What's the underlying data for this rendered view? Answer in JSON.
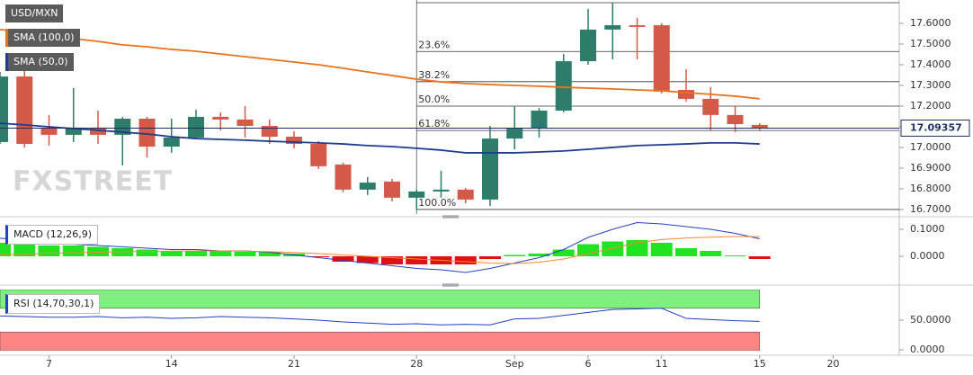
{
  "chart_data": [
    {
      "type": "candlestick",
      "title": "USD/MXN",
      "watermark": "FXSTREET",
      "categories": [
        null,
        null,
        "7",
        null,
        null,
        null,
        null,
        "14",
        null,
        null,
        null,
        null,
        "21",
        null,
        null,
        null,
        null,
        "28",
        null,
        null,
        null,
        "Sep",
        null,
        null,
        "6",
        null,
        null,
        "11",
        null,
        null,
        null,
        "15",
        null,
        null,
        "20"
      ],
      "open": [
        17.026,
        17.343,
        17.091,
        17.061,
        17.096,
        17.061,
        17.139,
        17.004,
        17.048,
        17.148,
        17.135,
        17.104,
        17.052,
        17.017,
        16.917,
        16.796,
        16.835,
        16.757,
        16.787,
        16.796,
        16.748,
        17.043,
        17.091,
        17.178,
        17.417,
        17.57,
        17.591,
        17.591,
        17.278,
        17.235,
        17.157,
        17.109,
        null,
        null,
        null
      ],
      "high": [
        17.365,
        17.387,
        17.157,
        17.287,
        17.178,
        17.148,
        17.148,
        17.139,
        17.183,
        17.17,
        17.2,
        17.135,
        17.078,
        17.03,
        16.926,
        16.857,
        16.848,
        16.796,
        16.887,
        16.804,
        17.104,
        17.2,
        17.191,
        17.452,
        17.67,
        17.7,
        17.626,
        17.6,
        17.378,
        17.291,
        17.2,
        17.117,
        null,
        null,
        null
      ],
      "low": [
        17.017,
        17.0,
        17.009,
        17.026,
        17.017,
        16.913,
        16.952,
        16.974,
        17.039,
        17.083,
        17.048,
        17.017,
        16.996,
        16.896,
        16.783,
        16.77,
        16.739,
        16.7,
        16.757,
        16.73,
        16.717,
        16.991,
        17.048,
        17.17,
        17.4,
        17.426,
        17.426,
        17.261,
        17.222,
        17.083,
        17.074,
        17.083,
        null,
        null,
        null
      ],
      "close": [
        17.343,
        17.017,
        17.061,
        17.096,
        17.061,
        17.139,
        17.004,
        17.048,
        17.148,
        17.135,
        17.104,
        17.052,
        17.017,
        16.909,
        16.796,
        16.83,
        16.757,
        16.787,
        16.796,
        16.748,
        17.043,
        17.091,
        17.178,
        17.417,
        17.57,
        17.591,
        17.583,
        17.27,
        17.235,
        17.157,
        17.113,
        17.09357,
        null,
        null,
        null
      ],
      "up_color": "#2e7d6b",
      "down_color": "#d35a48",
      "series": [
        {
          "name": "SMA (100,0)",
          "color": "#e8731c",
          "values": [
            17.57,
            17.557,
            17.539,
            17.526,
            17.513,
            17.496,
            17.487,
            17.474,
            17.465,
            17.452,
            17.439,
            17.426,
            17.413,
            17.4,
            17.383,
            17.365,
            17.348,
            17.33,
            17.317,
            17.309,
            17.304,
            17.3,
            17.296,
            17.291,
            17.287,
            17.283,
            17.278,
            17.274,
            17.265,
            17.257,
            17.248,
            17.235,
            null,
            null,
            null
          ]
        },
        {
          "name": "SMA (50,0)",
          "color": "#1f3c8f",
          "values": [
            17.117,
            17.109,
            17.1,
            17.091,
            17.083,
            17.074,
            17.065,
            17.052,
            17.043,
            17.039,
            17.035,
            17.03,
            17.026,
            17.022,
            17.017,
            17.009,
            17.004,
            16.996,
            16.987,
            16.974,
            16.974,
            16.974,
            16.978,
            16.983,
            16.991,
            17.0,
            17.009,
            17.013,
            17.017,
            17.022,
            17.022,
            17.017,
            null,
            null,
            null
          ]
        }
      ],
      "fibonacci": [
        {
          "value": 17.7
        },
        {
          "value": 17.464,
          "label": "23.6%"
        },
        {
          "value": 17.318,
          "label": "38.2%"
        },
        {
          "value": 17.2,
          "label": "50.0%"
        },
        {
          "value": 17.082,
          "label": "61.8%"
        },
        {
          "value": 16.7,
          "label": "100.0%"
        }
      ],
      "ylim": [
        16.678,
        17.713
      ],
      "yticks": [
        {
          "value": 16.7,
          "label": "16.7000"
        },
        {
          "value": 16.8,
          "label": "16.8000"
        },
        {
          "value": 16.9,
          "label": "16.9000"
        },
        {
          "value": 17.0,
          "label": "17.0000"
        },
        {
          "value": 17.1,
          "label": "17.1000"
        },
        {
          "value": 17.2,
          "label": "17.2000"
        },
        {
          "value": 17.3,
          "label": "17.3000"
        },
        {
          "value": 17.4,
          "label": "17.4000"
        },
        {
          "value": 17.5,
          "label": "17.5000"
        },
        {
          "value": 17.6,
          "label": "17.6000"
        }
      ]
    },
    {
      "type": "macd",
      "title": "MACD (12,26,9)",
      "histogram": [
        0.05,
        0.045,
        0.04,
        0.04,
        0.035,
        0.03,
        0.025,
        0.02,
        0.02,
        0.02,
        0.017,
        0.015,
        0.01,
        -0.003,
        -0.02,
        -0.025,
        -0.03,
        -0.03,
        -0.03,
        -0.03,
        -0.01,
        0.005,
        0.01,
        0.025,
        0.045,
        0.055,
        0.06,
        0.05,
        0.03,
        0.02,
        0.003,
        -0.01,
        null,
        null,
        null
      ],
      "positive_color": "#22e322",
      "negative_color": "#e01010",
      "series": [
        {
          "color": "#2340c0",
          "values": [
            0.067,
            0.06,
            0.05,
            0.045,
            0.04,
            0.035,
            0.03,
            0.025,
            0.025,
            0.02,
            0.02,
            0.015,
            0.005,
            -0.005,
            -0.015,
            -0.025,
            -0.035,
            -0.045,
            -0.05,
            -0.06,
            -0.045,
            -0.025,
            -0.005,
            0.025,
            0.07,
            0.1,
            0.125,
            0.12,
            0.11,
            0.1,
            0.085,
            0.065,
            null,
            null,
            null
          ]
        },
        {
          "color": "#f08a2c",
          "values": [
            0.005,
            0.008,
            0.011,
            0.013,
            0.015,
            0.017,
            0.018,
            0.019,
            0.02,
            0.02,
            0.019,
            0.017,
            0.014,
            0.01,
            0.005,
            0,
            -0.005,
            -0.01,
            -0.015,
            -0.02,
            -0.025,
            -0.027,
            -0.022,
            -0.01,
            0.01,
            0.03,
            0.05,
            0.062,
            0.068,
            0.071,
            0.073,
            0.073,
            null,
            null,
            null
          ]
        }
      ],
      "ylim": [
        -0.09,
        0.1333
      ],
      "yticks": [
        {
          "value": 0,
          "label": "0.0000"
        },
        {
          "value": 0.1,
          "label": "0.1000"
        }
      ]
    },
    {
      "type": "rsi",
      "title": "RSI (14,70,30,1)",
      "values": [
        57,
        56,
        55,
        55,
        56,
        54,
        55,
        53,
        54,
        56,
        55,
        54,
        52,
        50,
        47,
        45,
        43,
        44,
        42,
        43,
        42,
        52,
        53,
        58,
        63,
        68,
        69,
        70,
        53,
        51,
        49,
        48,
        null,
        null,
        null
      ],
      "color": "#2340c0",
      "overbought": 70,
      "overbought_color": "#7df07d",
      "oversold": 30,
      "oversold_color": "#ff8585",
      "ylim": [
        -1.5,
        101.5
      ],
      "yticks": [
        {
          "value": 0,
          "label": "0.0000"
        },
        {
          "value": 50,
          "label": "50.0000"
        }
      ]
    }
  ]
}
